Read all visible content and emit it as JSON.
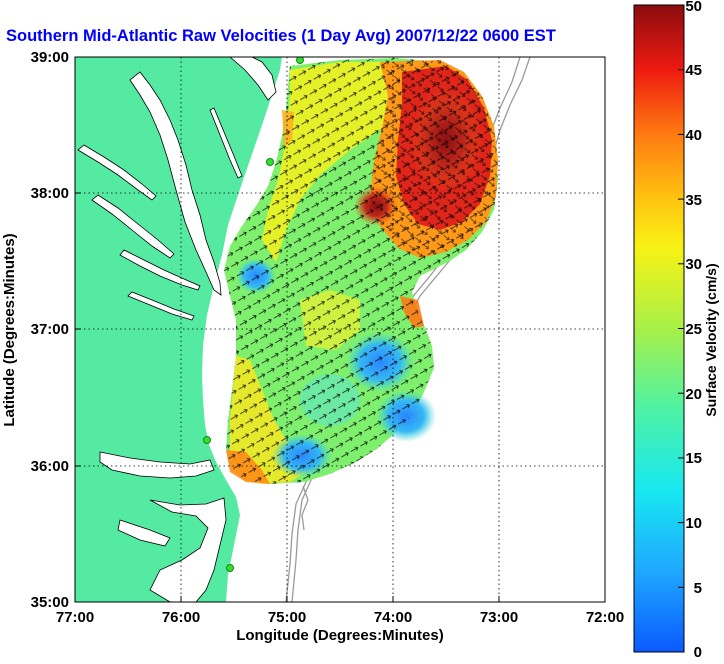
{
  "title": "Southern Mid-Atlantic Raw Velocities (1 Day Avg) 2007/12/22 0600 EST",
  "axes": {
    "xlabel": "Longitude (Degrees:Minutes)",
    "ylabel": "Latitude (Degrees:Minutes)",
    "x_ticks": [
      "77:00",
      "76:00",
      "75:00",
      "74:00",
      "73:00",
      "72:00"
    ],
    "y_ticks": [
      "39:00",
      "38:00",
      "37:00",
      "36:00",
      "35:00"
    ],
    "grid": "dotted"
  },
  "colorbar": {
    "label": "Surface Velocity (cm/s)",
    "ticks": [
      "50",
      "45",
      "40",
      "35",
      "30",
      "25",
      "20",
      "15",
      "10",
      "5",
      "0"
    ],
    "range": [
      0,
      50
    ]
  },
  "colors": {
    "title": "#0000ff",
    "land": "#55eaa2",
    "water": "#ffffff",
    "station": "#33dd33"
  }
}
